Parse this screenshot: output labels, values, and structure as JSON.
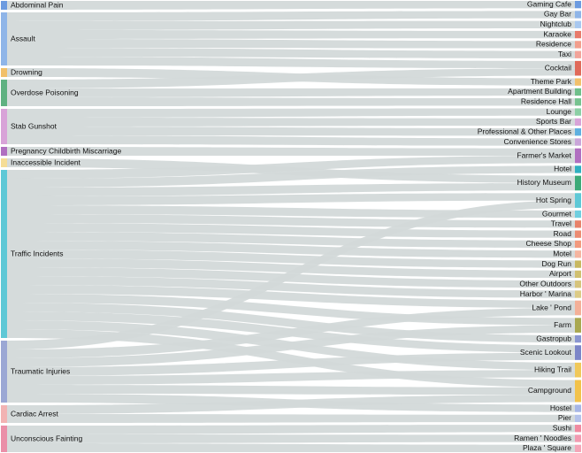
{
  "chart_data": {
    "type": "sankey",
    "link_color": "#d3d9d9",
    "sources": [
      {
        "name": "Abdominal Pain",
        "color": "#6c9be0"
      },
      {
        "name": "Assault",
        "color": "#8fb5e8"
      },
      {
        "name": "Drowning",
        "color": "#f1c06a"
      },
      {
        "name": "Overdose Poisoning",
        "color": "#5fb181"
      },
      {
        "name": "Stab Gunshot",
        "color": "#d8a3d8"
      },
      {
        "name": "Pregnancy Childbirth Miscarriage",
        "color": "#b06fc0"
      },
      {
        "name": "Inaccessible Incident",
        "color": "#f5dd96"
      },
      {
        "name": "Traffic Incidents",
        "color": "#5ec8d6"
      },
      {
        "name": "Traumatic Injuries",
        "color": "#9ba7d4"
      },
      {
        "name": "Cardiac Arrest",
        "color": "#f2b3b3"
      },
      {
        "name": "Unconscious Fainting",
        "color": "#ea8fa8"
      }
    ],
    "targets": [
      {
        "name": "Gaming Cafe",
        "color": "#6c9be0"
      },
      {
        "name": "Gay Bar",
        "color": "#8fb5e8"
      },
      {
        "name": "Nightclub",
        "color": "#a8c8f0"
      },
      {
        "name": "Karaoke",
        "color": "#e87a6a"
      },
      {
        "name": "Residence",
        "color": "#f29f8d"
      },
      {
        "name": "Taxi",
        "color": "#f2a49a"
      },
      {
        "name": "Cocktail",
        "color": "#e06a5a"
      },
      {
        "name": "Theme Park",
        "color": "#f1c06a"
      },
      {
        "name": "Apartment Building",
        "color": "#6fbf8a"
      },
      {
        "name": "Residence Hall",
        "color": "#76c28f"
      },
      {
        "name": "Lounge",
        "color": "#8ccfa5"
      },
      {
        "name": "Sports Bar",
        "color": "#d8a3d8"
      },
      {
        "name": "Professional & Other Places",
        "color": "#5fb0e0"
      },
      {
        "name": "Convenience Stores",
        "color": "#c9a6d9"
      },
      {
        "name": "Farmer's Market",
        "color": "#b06fc0"
      },
      {
        "name": "Hotel",
        "color": "#2fb0c0"
      },
      {
        "name": "History Museum",
        "color": "#3daa78"
      },
      {
        "name": "Hot Spring",
        "color": "#5ec8d6"
      },
      {
        "name": "Gourmet",
        "color": "#6fcfe0"
      },
      {
        "name": "Travel",
        "color": "#e8826a"
      },
      {
        "name": "Road",
        "color": "#ec8c72"
      },
      {
        "name": "Cheese Shop",
        "color": "#f29a7e"
      },
      {
        "name": "Motel",
        "color": "#f5b5a0"
      },
      {
        "name": "Dog Run",
        "color": "#c8b860"
      },
      {
        "name": "Airport",
        "color": "#d0c070"
      },
      {
        "name": "Other Outdoors",
        "color": "#d6c47c"
      },
      {
        "name": "Harbor ' Marina",
        "color": "#dccb86"
      },
      {
        "name": "Lake ' Pond",
        "color": "#f4b098"
      },
      {
        "name": "Farm",
        "color": "#a9a850"
      },
      {
        "name": "Gastropub",
        "color": "#8a96d0"
      },
      {
        "name": "Scenic Lookout",
        "color": "#7c86c8"
      },
      {
        "name": "Hiking Trail",
        "color": "#f0c85a"
      },
      {
        "name": "Campground",
        "color": "#f2c24a"
      },
      {
        "name": "Hostel",
        "color": "#a6b6e6"
      },
      {
        "name": "Pier",
        "color": "#b4c2ea"
      },
      {
        "name": "Sushi",
        "color": "#f08aa0"
      },
      {
        "name": "Ramen ' Noodles",
        "color": "#f29ab0"
      },
      {
        "name": "Plaza ' Square",
        "color": "#f4a6b8"
      }
    ],
    "links": [
      {
        "source": "Abdominal Pain",
        "target": "Gaming Cafe",
        "value": 1
      },
      {
        "source": "Assault",
        "target": "Gay Bar",
        "value": 1
      },
      {
        "source": "Assault",
        "target": "Nightclub",
        "value": 1
      },
      {
        "source": "Assault",
        "target": "Karaoke",
        "value": 1
      },
      {
        "source": "Assault",
        "target": "Residence",
        "value": 1
      },
      {
        "source": "Assault",
        "target": "Taxi",
        "value": 1
      },
      {
        "source": "Assault",
        "target": "Cocktail",
        "value": 1
      },
      {
        "source": "Drowning",
        "target": "Theme Park",
        "value": 1
      },
      {
        "source": "Overdose Poisoning",
        "target": "Cocktail",
        "value": 1
      },
      {
        "source": "Overdose Poisoning",
        "target": "Apartment Building",
        "value": 1
      },
      {
        "source": "Overdose Poisoning",
        "target": "Residence Hall",
        "value": 1
      },
      {
        "source": "Stab Gunshot",
        "target": "Lounge",
        "value": 1
      },
      {
        "source": "Stab Gunshot",
        "target": "Sports Bar",
        "value": 1
      },
      {
        "source": "Stab Gunshot",
        "target": "Professional & Other Places",
        "value": 1
      },
      {
        "source": "Stab Gunshot",
        "target": "Convenience Stores",
        "value": 1
      },
      {
        "source": "Pregnancy Childbirth Miscarriage",
        "target": "Farmer's Market",
        "value": 1
      },
      {
        "source": "Inaccessible Incident",
        "target": "History Museum",
        "value": 1
      },
      {
        "source": "Traffic Incidents",
        "target": "Farmer's Market",
        "value": 1
      },
      {
        "source": "Traffic Incidents",
        "target": "Hotel",
        "value": 1
      },
      {
        "source": "Traffic Incidents",
        "target": "History Museum",
        "value": 1
      },
      {
        "source": "Traffic Incidents",
        "target": "Hot Spring",
        "value": 1
      },
      {
        "source": "Traffic Incidents",
        "target": "Gourmet",
        "value": 1
      },
      {
        "source": "Traffic Incidents",
        "target": "Travel",
        "value": 1
      },
      {
        "source": "Traffic Incidents",
        "target": "Road",
        "value": 1
      },
      {
        "source": "Traffic Incidents",
        "target": "Cheese Shop",
        "value": 1
      },
      {
        "source": "Traffic Incidents",
        "target": "Motel",
        "value": 1
      },
      {
        "source": "Traffic Incidents",
        "target": "Dog Run",
        "value": 1
      },
      {
        "source": "Traffic Incidents",
        "target": "Airport",
        "value": 1
      },
      {
        "source": "Traffic Incidents",
        "target": "Other Outdoors",
        "value": 1
      },
      {
        "source": "Traffic Incidents",
        "target": "Harbor ' Marina",
        "value": 1
      },
      {
        "source": "Traffic Incidents",
        "target": "Lake ' Pond",
        "value": 1
      },
      {
        "source": "Traffic Incidents",
        "target": "Farm",
        "value": 1
      },
      {
        "source": "Traffic Incidents",
        "target": "Gastropub",
        "value": 1
      },
      {
        "source": "Traffic Incidents",
        "target": "Scenic Lookout",
        "value": 1
      },
      {
        "source": "Traffic Incidents",
        "target": "Hiking Trail",
        "value": 1
      },
      {
        "source": "Traffic Incidents",
        "target": "Campground",
        "value": 1
      },
      {
        "source": "Traumatic Injuries",
        "target": "Hot Spring",
        "value": 1
      },
      {
        "source": "Traumatic Injuries",
        "target": "Lake ' Pond",
        "value": 1
      },
      {
        "source": "Traumatic Injuries",
        "target": "Farm",
        "value": 1
      },
      {
        "source": "Traumatic Injuries",
        "target": "Scenic Lookout",
        "value": 1
      },
      {
        "source": "Traumatic Injuries",
        "target": "Hiking Trail",
        "value": 1
      },
      {
        "source": "Traumatic Injuries",
        "target": "Campground",
        "value": 1
      },
      {
        "source": "Traumatic Injuries",
        "target": "Hostel",
        "value": 1
      },
      {
        "source": "Cardiac Arrest",
        "target": "Campground",
        "value": 1
      },
      {
        "source": "Cardiac Arrest",
        "target": "Pier",
        "value": 1
      },
      {
        "source": "Unconscious Fainting",
        "target": "Sushi",
        "value": 1
      },
      {
        "source": "Unconscious Fainting",
        "target": "Ramen ' Noodles",
        "value": 1
      },
      {
        "source": "Unconscious Fainting",
        "target": "Plaza ' Square",
        "value": 1
      }
    ]
  }
}
